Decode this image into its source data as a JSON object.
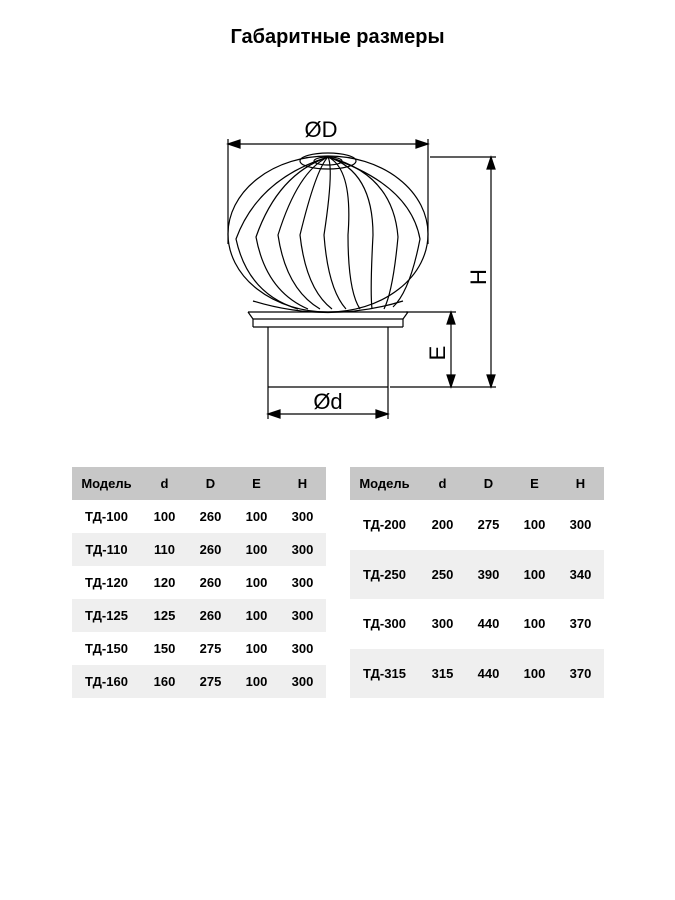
{
  "title": "Габаритные размеры",
  "diagram": {
    "label_D": "ØD",
    "label_d": "Ød",
    "label_E": "Е",
    "label_H": "Н",
    "stroke_color": "#000000",
    "stroke_width": 1.2,
    "dim_fontsize": 22,
    "background": "#ffffff"
  },
  "tables": {
    "columns": [
      "Модель",
      "d",
      "D",
      "E",
      "H"
    ],
    "header_bg": "#c7c7c7",
    "alt_row_bg": "#efefef",
    "font_size": 13,
    "left": [
      {
        "model": "ТД-100",
        "d": "100",
        "D": "260",
        "E": "100",
        "H": "300"
      },
      {
        "model": "ТД-110",
        "d": "110",
        "D": "260",
        "E": "100",
        "H": "300"
      },
      {
        "model": "ТД-120",
        "d": "120",
        "D": "260",
        "E": "100",
        "H": "300"
      },
      {
        "model": "ТД-125",
        "d": "125",
        "D": "260",
        "E": "100",
        "H": "300"
      },
      {
        "model": "ТД-150",
        "d": "150",
        "D": "275",
        "E": "100",
        "H": "300"
      },
      {
        "model": "ТД-160",
        "d": "160",
        "D": "275",
        "E": "100",
        "H": "300"
      }
    ],
    "right": [
      {
        "model": "ТД-200",
        "d": "200",
        "D": "275",
        "E": "100",
        "H": "300"
      },
      {
        "model": "ТД-250",
        "d": "250",
        "D": "390",
        "E": "100",
        "H": "340"
      },
      {
        "model": "ТД-300",
        "d": "300",
        "D": "440",
        "E": "100",
        "H": "370"
      },
      {
        "model": "ТД-315",
        "d": "315",
        "D": "440",
        "E": "100",
        "H": "370"
      }
    ]
  }
}
